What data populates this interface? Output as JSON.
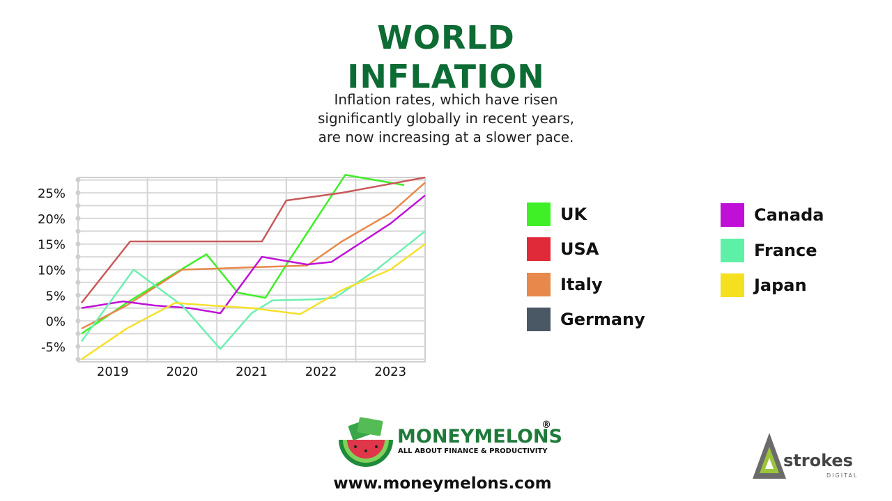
{
  "header": {
    "title_line1": "WORLD",
    "title_line2": "INFLATION",
    "subtitle_line1": "Inflation rates, which have risen",
    "subtitle_line2": "significantly globally in recent years,",
    "subtitle_line3": "are now increasing at a slower pace."
  },
  "chart_data": {
    "type": "line",
    "title": "WORLD INFLATION",
    "x": [
      2018.5,
      2019.2,
      2019.8,
      2020.0,
      2020.6,
      2021.2,
      2021.4,
      2022.2,
      2022.5,
      2023.0,
      2023.5
    ],
    "x_ticks": [
      "2019",
      "2020",
      "2021",
      "2022",
      "2023"
    ],
    "y_ticks": [
      "25%",
      "20%",
      "15%",
      "10%",
      "5%",
      "0%",
      "-5%"
    ],
    "ylim": [
      -8,
      28
    ],
    "xlim": [
      2018.5,
      2023.5
    ],
    "grid": true,
    "legend_position": "right",
    "series": [
      {
        "name": "UK",
        "color": "#3ef025",
        "points": [
          [
            2018.55,
            -2.5
          ],
          [
            2019.2,
            3.5
          ],
          [
            2019.8,
            8.5
          ],
          [
            2020.35,
            13
          ],
          [
            2020.8,
            5.5
          ],
          [
            2021.2,
            4.5
          ],
          [
            2021.55,
            12
          ],
          [
            2022.35,
            28.5
          ],
          [
            2023.2,
            26.5
          ]
        ]
      },
      {
        "name": "USA",
        "color": "#c85a5a",
        "points": [
          [
            2018.55,
            3.5
          ],
          [
            2019.25,
            15.5
          ],
          [
            2020.0,
            15.5
          ],
          [
            2020.65,
            15.5
          ],
          [
            2021.15,
            15.5
          ],
          [
            2021.5,
            23.5
          ],
          [
            2022.3,
            25
          ],
          [
            2023.5,
            28
          ]
        ]
      },
      {
        "name": "Italy",
        "color": "#e8884a",
        "points": [
          [
            2018.55,
            -1.5
          ],
          [
            2019.2,
            3
          ],
          [
            2020.0,
            10
          ],
          [
            2020.5,
            10.2
          ],
          [
            2021.1,
            10.5
          ],
          [
            2021.8,
            10.8
          ],
          [
            2022.3,
            15.5
          ],
          [
            2023.0,
            21
          ],
          [
            2023.5,
            27
          ]
        ]
      },
      {
        "name": "Germany",
        "color": "#4a5866",
        "points": []
      },
      {
        "name": "Canada",
        "color": "#c010d8",
        "points": [
          [
            2018.55,
            2.5
          ],
          [
            2019.15,
            3.8
          ],
          [
            2019.6,
            3
          ],
          [
            2020.1,
            2.5
          ],
          [
            2020.55,
            1.5
          ],
          [
            2021.15,
            12.5
          ],
          [
            2021.8,
            11
          ],
          [
            2022.15,
            11.5
          ],
          [
            2023.0,
            19
          ],
          [
            2023.5,
            24.5
          ]
        ]
      },
      {
        "name": "France",
        "color": "#6ef0b0",
        "points": [
          [
            2018.55,
            -4
          ],
          [
            2019.3,
            10
          ],
          [
            2020.0,
            3
          ],
          [
            2020.55,
            -5.5
          ],
          [
            2021.0,
            1.5
          ],
          [
            2021.3,
            4
          ],
          [
            2021.9,
            4.2
          ],
          [
            2022.2,
            4.5
          ],
          [
            2022.8,
            10
          ],
          [
            2023.5,
            17.5
          ]
        ]
      },
      {
        "name": "Japan",
        "color": "#f5e02a",
        "points": [
          [
            2018.55,
            -7.5
          ],
          [
            2019.2,
            -1.5
          ],
          [
            2019.9,
            3.5
          ],
          [
            2020.4,
            3
          ],
          [
            2021.0,
            2.5
          ],
          [
            2021.7,
            1.3
          ],
          [
            2022.3,
            6
          ],
          [
            2023.0,
            10
          ],
          [
            2023.5,
            15
          ]
        ]
      }
    ]
  },
  "legend": {
    "items": [
      {
        "label": "UK",
        "color": "#3ef025"
      },
      {
        "label": "USA",
        "color": "#e02a3a"
      },
      {
        "label": "Italy",
        "color": "#e8884a"
      },
      {
        "label": "Germany",
        "color": "#4a5866"
      },
      {
        "label": "Canada",
        "color": "#c010d8"
      },
      {
        "label": "France",
        "color": "#5ff0a8"
      },
      {
        "label": "Japan",
        "color": "#f5e020"
      }
    ]
  },
  "footer": {
    "brand": "MONEYMELONS",
    "registered": "®",
    "tagline": "ALL ABOUT FINANCE & PRODUCTIVITY",
    "url": "www.moneymelons.com",
    "partner": "strokes",
    "partner_sub": "DIGITAL"
  }
}
